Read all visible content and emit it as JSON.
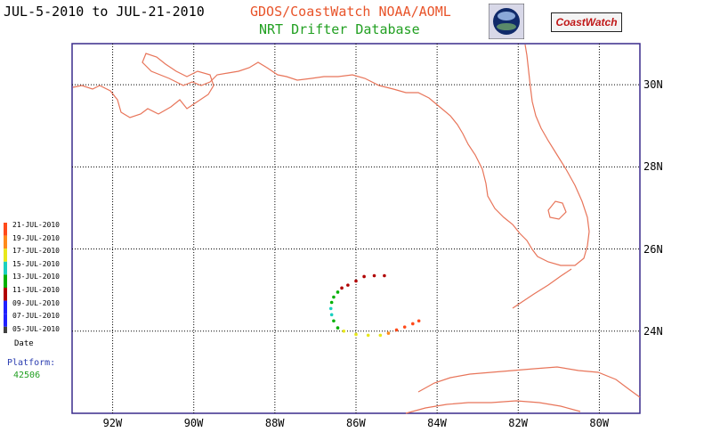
{
  "header": {
    "date_range": "JUL-5-2010 to JUL-21-2010",
    "org": "GDOS/CoastWatch  NOAA/AOML",
    "database": "NRT Drifter Database",
    "logo_text": "CoastWatch",
    "colors": {
      "date": "#000000",
      "org": "#e8542a",
      "database": "#22a022"
    }
  },
  "map": {
    "lat_range": [
      22,
      31
    ],
    "lon_range": [
      -93,
      -79
    ],
    "gridlines": "dotted",
    "lat_ticks": [
      {
        "value": 24,
        "label": "24N"
      },
      {
        "value": 26,
        "label": "26N"
      },
      {
        "value": 28,
        "label": "28N"
      },
      {
        "value": 30,
        "label": "30N"
      }
    ],
    "lon_ticks": [
      {
        "value": -92,
        "label": "92W"
      },
      {
        "value": -90,
        "label": "90W"
      },
      {
        "value": -88,
        "label": "88W"
      },
      {
        "value": -86,
        "label": "86W"
      },
      {
        "value": -84,
        "label": "84W"
      },
      {
        "value": -82,
        "label": "82W"
      },
      {
        "value": -80,
        "label": "80W"
      }
    ],
    "coast_color": "#e8755a",
    "frame_color": "#3a2b8c"
  },
  "legend": {
    "entries": [
      {
        "label": "21-JUL-2010",
        "color": "#ff4a1a"
      },
      {
        "label": "19-JUL-2010",
        "color": "#ff8a1a"
      },
      {
        "label": "17-JUL-2010",
        "color": "#e8e81a"
      },
      {
        "label": "15-JUL-2010",
        "color": "#1ad0c0"
      },
      {
        "label": "13-JUL-2010",
        "color": "#00b000"
      },
      {
        "label": "11-JUL-2010",
        "color": "#b00000"
      },
      {
        "label": "09-JUL-2010",
        "color": "#2020ff"
      },
      {
        "label": "07-JUL-2010",
        "color": "#2020ff"
      },
      {
        "label": "05-JUL-2010",
        "color": "#404040"
      }
    ],
    "title": "Date"
  },
  "platform": {
    "label": "Platform:",
    "id": "42506",
    "label_color": "#2a3cb0",
    "id_color": "#22a022"
  },
  "track": [
    {
      "lon": -85.3,
      "lat": 25.35,
      "color": "#b00000"
    },
    {
      "lon": -85.55,
      "lat": 25.35,
      "color": "#b00000"
    },
    {
      "lon": -85.8,
      "lat": 25.33,
      "color": "#b00000"
    },
    {
      "lon": -86.0,
      "lat": 25.22,
      "color": "#b00000"
    },
    {
      "lon": -86.2,
      "lat": 25.12,
      "color": "#b00000"
    },
    {
      "lon": -86.35,
      "lat": 25.05,
      "color": "#b00000"
    },
    {
      "lon": -86.45,
      "lat": 24.95,
      "color": "#00b000"
    },
    {
      "lon": -86.55,
      "lat": 24.83,
      "color": "#00b000"
    },
    {
      "lon": -86.6,
      "lat": 24.7,
      "color": "#00b000"
    },
    {
      "lon": -86.62,
      "lat": 24.55,
      "color": "#1ad0c0"
    },
    {
      "lon": -86.6,
      "lat": 24.4,
      "color": "#1ad0c0"
    },
    {
      "lon": -86.55,
      "lat": 24.25,
      "color": "#00b000"
    },
    {
      "lon": -86.45,
      "lat": 24.08,
      "color": "#00b000"
    },
    {
      "lon": -86.3,
      "lat": 24.0,
      "color": "#e8e81a"
    },
    {
      "lon": -86.0,
      "lat": 23.92,
      "color": "#e8e81a"
    },
    {
      "lon": -85.7,
      "lat": 23.9,
      "color": "#e8e81a"
    },
    {
      "lon": -85.4,
      "lat": 23.9,
      "color": "#e8e81a"
    },
    {
      "lon": -85.2,
      "lat": 23.95,
      "color": "#ff8a1a"
    },
    {
      "lon": -85.0,
      "lat": 24.03,
      "color": "#ff4a1a"
    },
    {
      "lon": -84.8,
      "lat": 24.1,
      "color": "#ff4a1a"
    },
    {
      "lon": -84.6,
      "lat": 24.18,
      "color": "#ff4a1a"
    },
    {
      "lon": -84.45,
      "lat": 24.25,
      "color": "#ff4a1a"
    }
  ]
}
